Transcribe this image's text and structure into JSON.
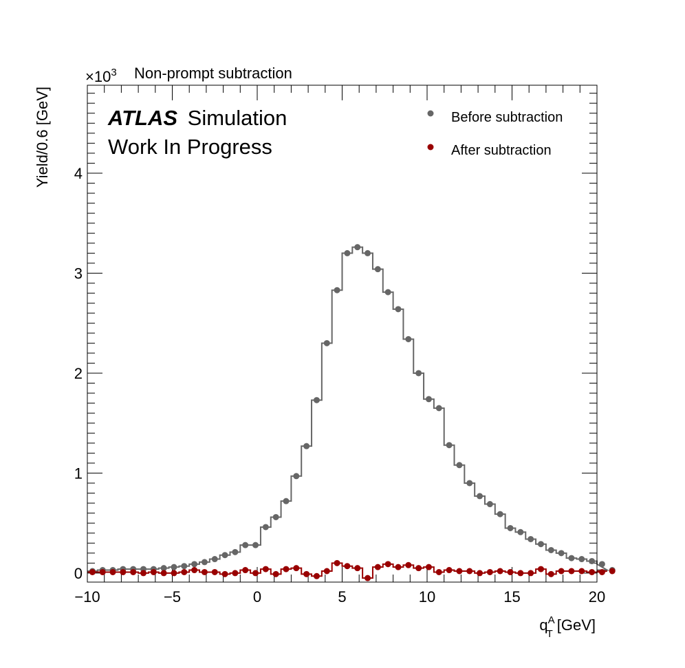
{
  "chart_data": {
    "type": "scatter",
    "title": "Non-prompt subtraction",
    "xlabel": "q",
    "xlabel_sup": "A",
    "xlabel_sub": "T",
    "xlabel_unit": "[GeV]",
    "ylabel": "Yield/0.6 [GeV]",
    "y_scale_prefix": "×10",
    "y_scale_exp": "3",
    "xlim": [
      -10,
      20
    ],
    "ylim": [
      -0.09,
      4.88
    ],
    "bin_width": 0.6,
    "x_ticks": [
      "−10",
      "−5",
      "0",
      "5",
      "10",
      "15",
      "20"
    ],
    "y_ticks": [
      "0",
      "1",
      "2",
      "3",
      "4"
    ],
    "atlas_label": "ATLAS",
    "atlas_sub": "Simulation",
    "status_label": "Work In Progress",
    "legend_position": "top-right",
    "series": [
      {
        "name": "Before subtraction",
        "color": "#666666",
        "values": [
          0.02,
          0.03,
          0.03,
          0.04,
          0.04,
          0.04,
          0.04,
          0.05,
          0.06,
          0.07,
          0.09,
          0.11,
          0.14,
          0.18,
          0.21,
          0.28,
          0.28,
          0.46,
          0.56,
          0.72,
          0.97,
          1.27,
          1.73,
          2.3,
          2.83,
          3.2,
          3.26,
          3.2,
          3.04,
          2.81,
          2.64,
          2.34,
          2.0,
          1.74,
          1.65,
          1.28,
          1.08,
          0.9,
          0.77,
          0.69,
          0.59,
          0.45,
          0.41,
          0.34,
          0.29,
          0.23,
          0.2,
          0.15,
          0.14,
          0.12,
          0.09,
          0.03
        ]
      },
      {
        "name": "After subtraction",
        "color": "#990000",
        "values": [
          0.01,
          0.01,
          0.01,
          0.01,
          0.01,
          0.0,
          0.01,
          0.0,
          0.0,
          0.01,
          0.03,
          0.01,
          0.01,
          -0.01,
          0.0,
          0.03,
          0.0,
          0.04,
          -0.01,
          0.04,
          0.05,
          -0.01,
          -0.03,
          0.02,
          0.1,
          0.07,
          0.05,
          -0.05,
          0.06,
          0.09,
          0.06,
          0.08,
          0.05,
          0.06,
          0.01,
          0.03,
          0.02,
          0.02,
          0.0,
          0.01,
          0.02,
          0.01,
          0.0,
          0.0,
          0.04,
          -0.01,
          0.02,
          0.02,
          0.02,
          0.01,
          0.01,
          0.02
        ]
      }
    ]
  }
}
